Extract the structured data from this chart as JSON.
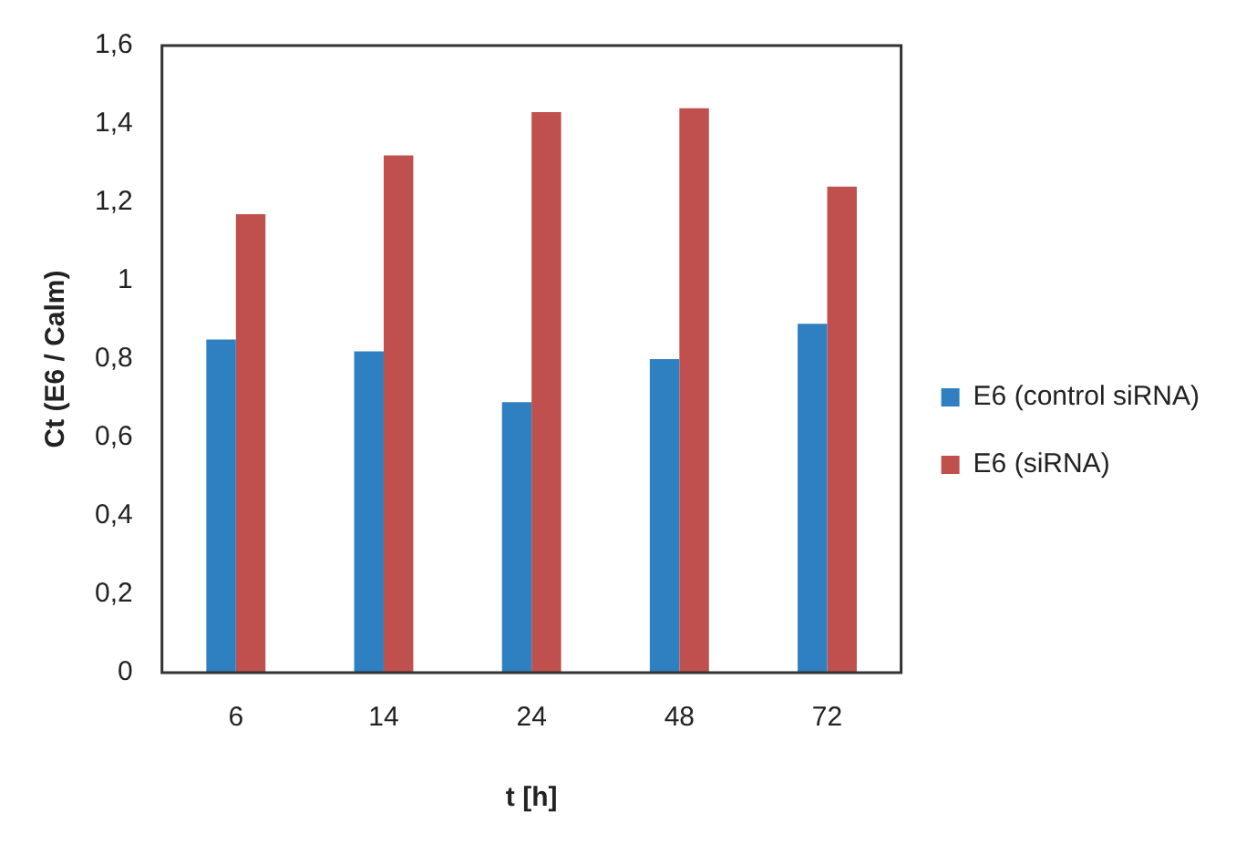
{
  "chart_data": {
    "type": "bar",
    "xlabel": "t [h]",
    "ylabel": "Ct (E6 / Calm)",
    "categories": [
      "6",
      "14",
      "24",
      "48",
      "72"
    ],
    "series": [
      {
        "name": "E6 (control siRNA)",
        "color": "#2e80c0",
        "values": [
          0.85,
          0.82,
          0.69,
          0.8,
          0.89
        ]
      },
      {
        "name": "E6 (siRNA)",
        "color": "#c0504d",
        "values": [
          1.17,
          1.32,
          1.43,
          1.44,
          1.24
        ]
      }
    ],
    "ylim": [
      0,
      1.6
    ],
    "yticks": [
      0,
      {
        "value": 0.2,
        "label": "0,2"
      },
      {
        "value": 0.4,
        "label": "0,4"
      },
      {
        "value": 0.6,
        "label": "0,6"
      },
      {
        "value": 0.8,
        "label": "0,8"
      },
      1,
      {
        "value": 1.2,
        "label": "1,2"
      },
      {
        "value": 1.4,
        "label": "1,4"
      },
      {
        "value": 1.6,
        "label": "1,6"
      }
    ],
    "grid": false,
    "legend": "right"
  }
}
